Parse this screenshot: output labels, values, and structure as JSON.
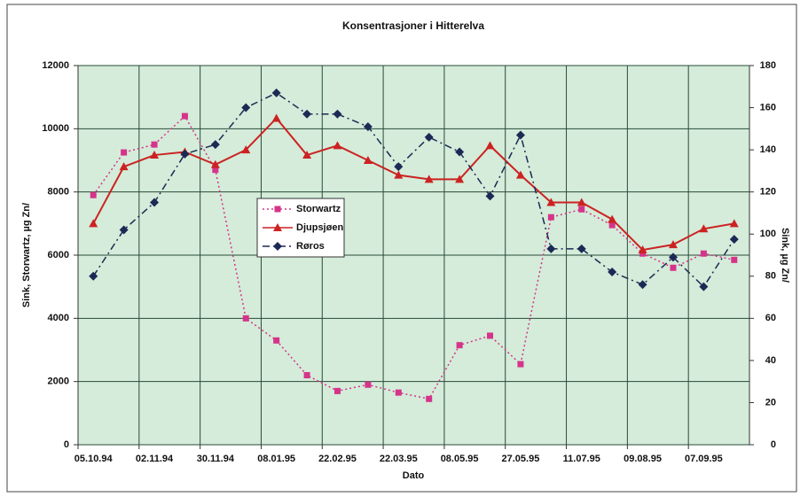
{
  "chart_data": {
    "type": "line",
    "title": "Konsentrasjoner i Hitterelva",
    "x_label": "Dato",
    "y_label": "Sink, Storwartz, µg Zn/",
    "y2_label": "Sink, µg Zn/",
    "categories": [
      "05.10.94",
      null,
      "02.11.94",
      null,
      "30.11.94",
      null,
      "08.01.95",
      null,
      "22.02.95",
      null,
      "22.03.95",
      null,
      "08.05.95",
      null,
      "27.05.95",
      null,
      "11.07.95",
      null,
      "09.08.95",
      null,
      "07.09.95",
      null
    ],
    "ylim": [
      0,
      12000
    ],
    "yticks": [
      0,
      2000,
      4000,
      6000,
      8000,
      10000,
      12000
    ],
    "y2lim": [
      0,
      180
    ],
    "y2ticks": [
      0,
      20,
      40,
      60,
      80,
      100,
      120,
      140,
      160,
      180
    ],
    "grid": true,
    "series": [
      {
        "name": "Storwartz",
        "color": "#d6338a",
        "marker": "square",
        "dash": "dotted",
        "values": [
          7900,
          9250,
          9500,
          10400,
          8700,
          4000,
          3300,
          2200,
          1700,
          1900,
          1650,
          1450,
          3150,
          3450,
          2550,
          7200,
          7450,
          6950,
          6050,
          5600,
          6050,
          5850
        ]
      },
      {
        "name": "Djupsjøen",
        "color": "#cc2222",
        "marker": "triangle",
        "dash": "solid",
        "axis": "y2",
        "values": [
          105,
          132,
          137.5,
          139,
          133,
          140,
          155,
          137.5,
          142,
          135,
          128,
          126,
          126,
          142,
          128,
          115,
          115,
          107,
          92.5,
          95,
          102.5,
          105
        ]
      },
      {
        "name": "Røros",
        "color": "#1b2a55",
        "marker": "diamond",
        "dash": "dashdot",
        "axis": "y2",
        "values": [
          80,
          102,
          115,
          138,
          142.5,
          160,
          167,
          157,
          157,
          151,
          132,
          146,
          139,
          118,
          147,
          93,
          93,
          82,
          76,
          89,
          75,
          97.5
        ]
      }
    ]
  }
}
